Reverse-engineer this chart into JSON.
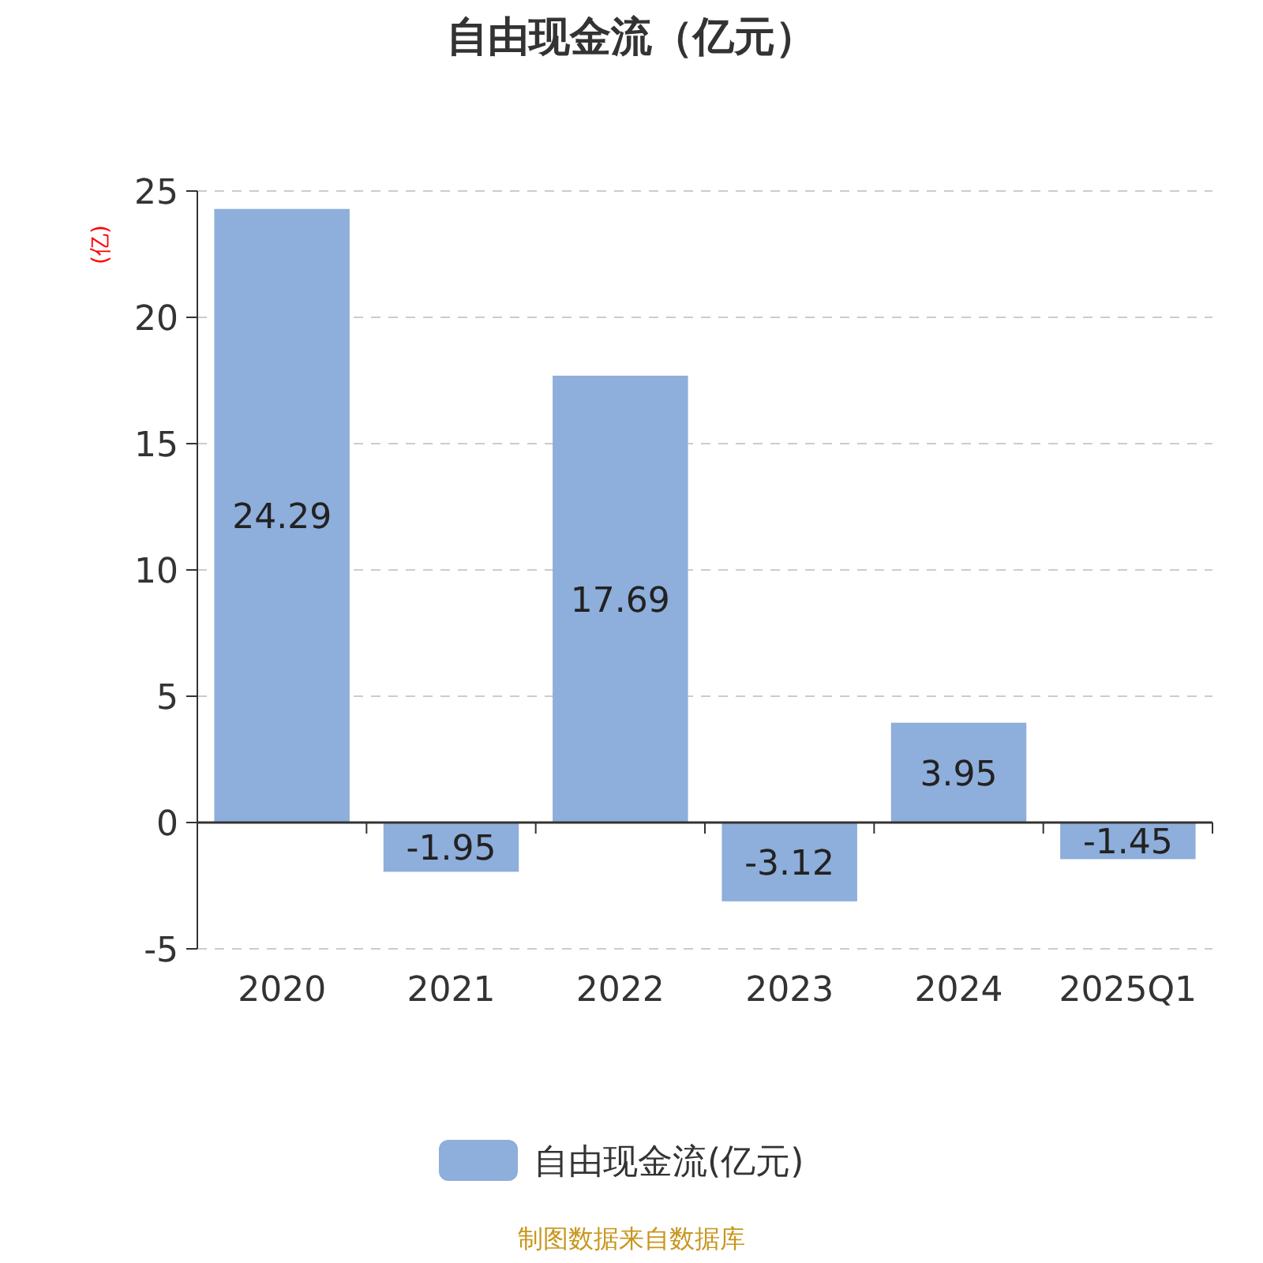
{
  "chart_data": {
    "type": "bar",
    "title": "自由现金流（亿元）",
    "ylabel": "(亿)",
    "categories": [
      "2020",
      "2021",
      "2022",
      "2023",
      "2024",
      "2025Q1"
    ],
    "series": [
      {
        "name": "自由现金流(亿元)",
        "color": "#8eaedb",
        "values": [
          24.29,
          -1.95,
          17.69,
          -3.12,
          3.95,
          -1.45
        ]
      }
    ],
    "ylim": [
      -5,
      25
    ],
    "yticks": [
      -5,
      0,
      5,
      10,
      15,
      20,
      25
    ],
    "grid": "y",
    "legend": "bottom",
    "data_labels": true,
    "annotations": [
      "制图数据来自数据库"
    ]
  }
}
